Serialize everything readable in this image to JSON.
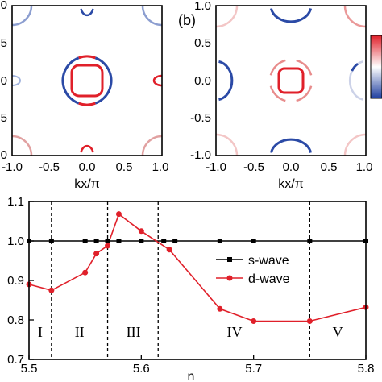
{
  "panels": [
    {
      "label": "",
      "xlabel": "kx/π",
      "xticks": [
        "-1.0",
        "-0.5",
        "0.0",
        "0.5",
        "1.0"
      ],
      "yticks": [
        ".0",
        ".5",
        ".0",
        ".5",
        ".0"
      ]
    },
    {
      "label": "(b)",
      "xlabel": "kx/π",
      "xticks": [
        "-1.0",
        "-0.5",
        "0.0",
        "0.5",
        "1.0"
      ],
      "yticks": [
        "1.0",
        "0.5",
        "0.0",
        "-0.5",
        "-1.0"
      ]
    }
  ],
  "colorbar": {
    "top_color": "#e0202a",
    "bottom_color": "#1f3f9f"
  },
  "colors": {
    "red": "#e0202a",
    "blue": "#2b4aa6",
    "black": "#000000"
  },
  "chart_data": [
    {
      "type": "line",
      "xlabel": "n",
      "ylabel": "",
      "xlim": [
        5.5,
        5.8
      ],
      "ylim": [
        0.7,
        1.1
      ],
      "xticks": [
        "5.5",
        "5.6",
        "5.7",
        "5.8"
      ],
      "yticks": [
        "0.7",
        "0.8",
        "0.9",
        "1.0",
        "1.1"
      ],
      "grid": false,
      "legend_position": "center-right",
      "series": [
        {
          "name": "s-wave",
          "color": "#000000",
          "marker": "square",
          "x": [
            5.5,
            5.52,
            5.55,
            5.56,
            5.57,
            5.58,
            5.6,
            5.62,
            5.63,
            5.67,
            5.7,
            5.75,
            5.8
          ],
          "y": [
            1.0,
            1.0,
            1.0,
            1.0,
            1.0,
            1.0,
            1.0,
            1.0,
            1.0,
            1.0,
            1.0,
            1.0,
            1.0
          ]
        },
        {
          "name": "d-wave",
          "color": "#e0202a",
          "marker": "circle",
          "x": [
            5.5,
            5.52,
            5.55,
            5.56,
            5.57,
            5.58,
            5.6,
            5.625,
            5.67,
            5.7,
            5.75,
            5.8
          ],
          "y": [
            0.89,
            0.875,
            0.92,
            0.968,
            0.988,
            1.068,
            1.025,
            0.978,
            0.828,
            0.797,
            0.797,
            0.832
          ]
        }
      ],
      "vlines": [
        5.52,
        5.57,
        5.615,
        5.75
      ],
      "regions": [
        {
          "label": "I",
          "x": 5.51
        },
        {
          "label": "II",
          "x": 5.545
        },
        {
          "label": "III",
          "x": 5.593
        },
        {
          "label": "IV",
          "x": 5.683
        },
        {
          "label": "V",
          "x": 5.775
        }
      ]
    }
  ]
}
